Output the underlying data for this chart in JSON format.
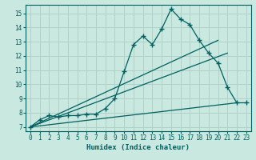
{
  "xlabel": "Humidex (Indice chaleur)",
  "background_color": "#c8e8e0",
  "grid_color": "#b0d0c8",
  "line_color": "#006060",
  "xlim": [
    -0.5,
    23.5
  ],
  "ylim": [
    6.7,
    15.6
  ],
  "xticks": [
    0,
    1,
    2,
    3,
    4,
    5,
    6,
    7,
    8,
    9,
    10,
    11,
    12,
    13,
    14,
    15,
    16,
    17,
    18,
    19,
    20,
    21,
    22,
    23
  ],
  "yticks": [
    7,
    8,
    9,
    10,
    11,
    12,
    13,
    14,
    15
  ],
  "series_main": {
    "x": [
      0,
      1,
      2,
      3,
      4,
      5,
      6,
      7,
      8,
      9,
      10,
      11,
      12,
      13,
      14,
      15,
      16,
      17,
      18,
      19,
      20,
      21,
      22,
      23
    ],
    "y": [
      7.0,
      7.5,
      7.8,
      7.7,
      7.8,
      7.8,
      7.9,
      7.9,
      8.3,
      9.0,
      10.9,
      12.8,
      13.4,
      12.8,
      13.9,
      15.3,
      14.6,
      14.2,
      13.1,
      12.2,
      11.5,
      9.8,
      8.7,
      8.7
    ]
  },
  "series_lines": [
    {
      "x": [
        0,
        20
      ],
      "y": [
        7.0,
        13.1
      ]
    },
    {
      "x": [
        0,
        21
      ],
      "y": [
        7.0,
        12.2
      ]
    },
    {
      "x": [
        0,
        22
      ],
      "y": [
        7.0,
        8.7
      ]
    }
  ]
}
